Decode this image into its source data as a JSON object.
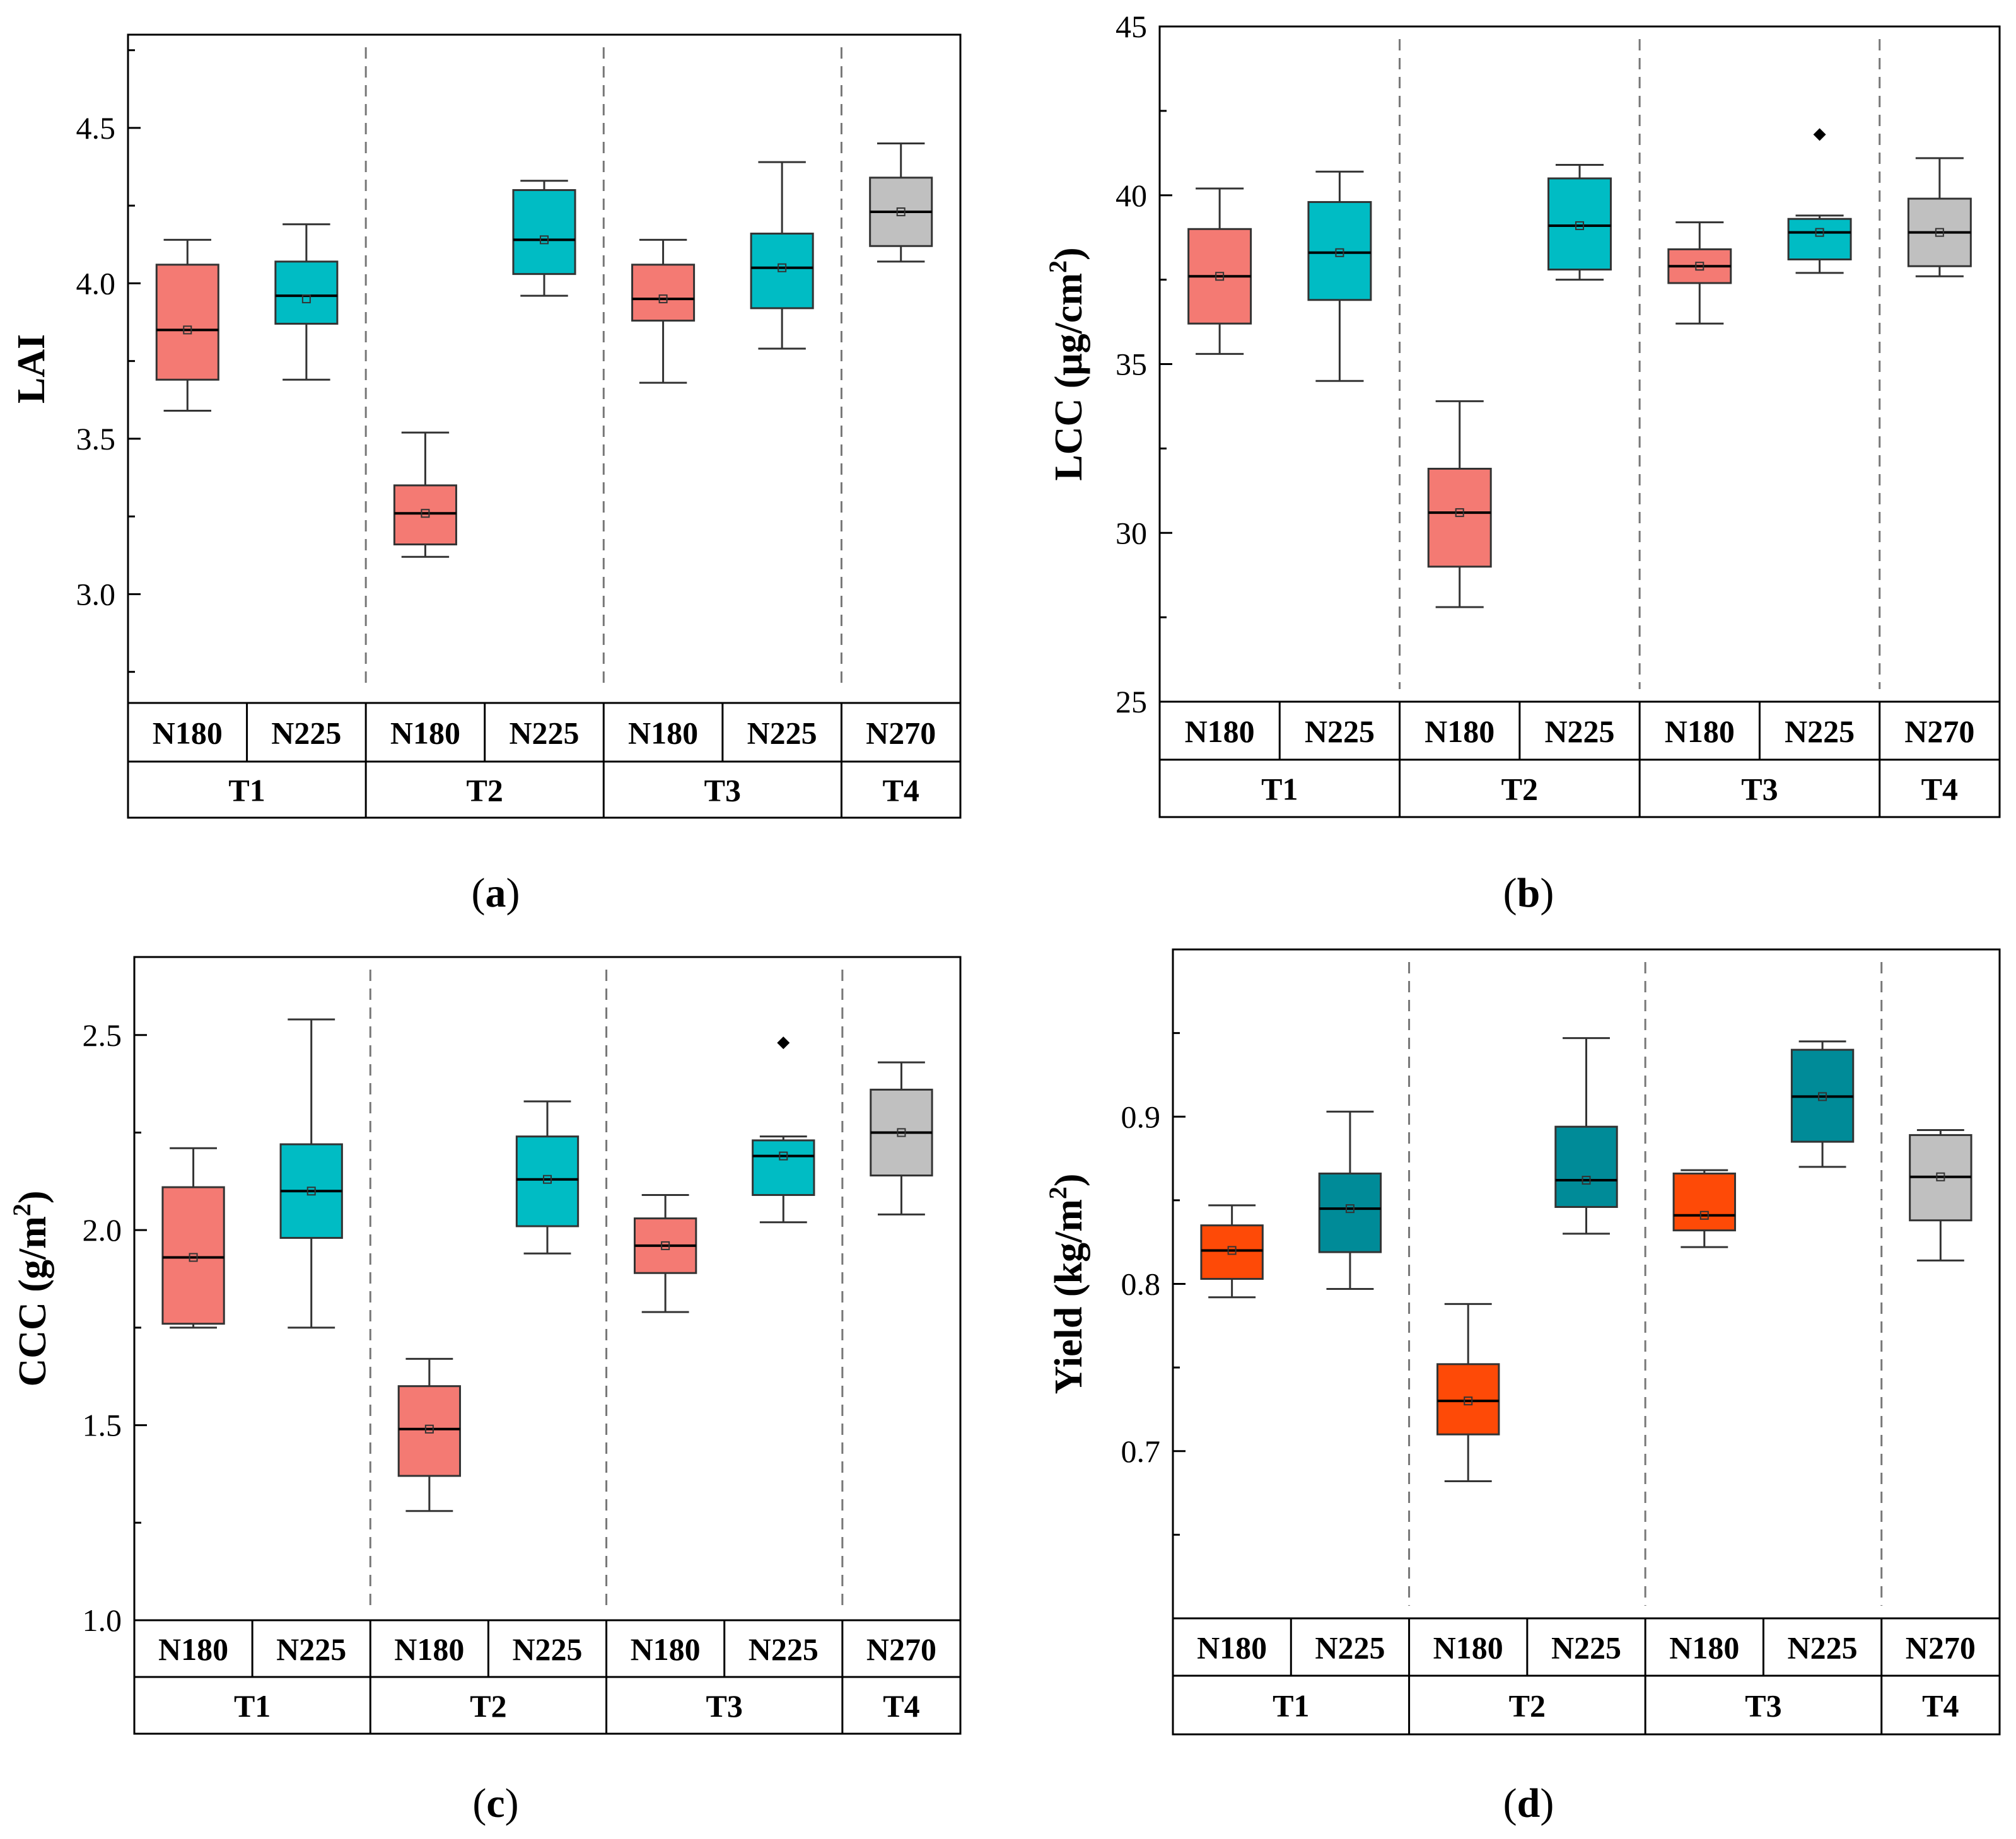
{
  "colors": {
    "N180": "#f47a73",
    "N225": "#00bcc4",
    "N270": "#c0c0c0",
    "yield_N180": "#fe4a07",
    "yield_N225": "#008b98"
  },
  "chart_data": [
    {
      "panel": "a",
      "type": "box",
      "caption": "(a)",
      "caption_letter": "a",
      "ylabel": "LAI",
      "ylabel_sup": "",
      "ylabel_close": "",
      "ylim": [
        2.65,
        4.8
      ],
      "yticks": [
        3.0,
        3.5,
        4.0,
        4.5
      ],
      "ytick_labels": [
        "3.0",
        "3.5",
        "4.0",
        "4.5"
      ],
      "groups": [
        {
          "name": "T1",
          "categories": [
            "N180",
            "N225"
          ]
        },
        {
          "name": "T2",
          "categories": [
            "N180",
            "N225"
          ]
        },
        {
          "name": "T3",
          "categories": [
            "N180",
            "N225"
          ]
        },
        {
          "name": "T4",
          "categories": [
            "N270"
          ]
        }
      ],
      "boxes": [
        {
          "group": "T1",
          "category": "N180",
          "min": 3.59,
          "q1": 3.69,
          "median": 3.85,
          "mean": 3.85,
          "q3": 4.06,
          "max": 4.14,
          "outliers": []
        },
        {
          "group": "T1",
          "category": "N225",
          "min": 3.69,
          "q1": 3.87,
          "median": 3.96,
          "mean": 3.95,
          "q3": 4.07,
          "max": 4.19,
          "outliers": []
        },
        {
          "group": "T2",
          "category": "N180",
          "min": 3.12,
          "q1": 3.16,
          "median": 3.26,
          "mean": 3.26,
          "q3": 3.35,
          "max": 3.52,
          "outliers": []
        },
        {
          "group": "T2",
          "category": "N225",
          "min": 3.96,
          "q1": 4.03,
          "median": 4.14,
          "mean": 4.14,
          "q3": 4.3,
          "max": 4.33,
          "outliers": []
        },
        {
          "group": "T3",
          "category": "N180",
          "min": 3.68,
          "q1": 3.88,
          "median": 3.95,
          "mean": 3.95,
          "q3": 4.06,
          "max": 4.14,
          "outliers": []
        },
        {
          "group": "T3",
          "category": "N225",
          "min": 3.79,
          "q1": 3.92,
          "median": 4.05,
          "mean": 4.05,
          "q3": 4.16,
          "max": 4.39,
          "outliers": []
        },
        {
          "group": "T4",
          "category": "N270",
          "min": 4.07,
          "q1": 4.12,
          "median": 4.23,
          "mean": 4.23,
          "q3": 4.34,
          "max": 4.45,
          "outliers": []
        }
      ]
    },
    {
      "panel": "b",
      "type": "box",
      "caption": "(b)",
      "caption_letter": "b",
      "ylabel": "LCC (μg/cm",
      "ylabel_sup": "2",
      "ylabel_close": ")",
      "ylim": [
        25,
        45
      ],
      "yticks": [
        25,
        30,
        35,
        40,
        45
      ],
      "ytick_labels": [
        "25",
        "30",
        "35",
        "40",
        "45"
      ],
      "groups": [
        {
          "name": "T1",
          "categories": [
            "N180",
            "N225"
          ]
        },
        {
          "name": "T2",
          "categories": [
            "N180",
            "N225"
          ]
        },
        {
          "name": "T3",
          "categories": [
            "N180",
            "N225"
          ]
        },
        {
          "name": "T4",
          "categories": [
            "N270"
          ]
        }
      ],
      "boxes": [
        {
          "group": "T1",
          "category": "N180",
          "min": 35.3,
          "q1": 36.2,
          "median": 37.6,
          "mean": 37.6,
          "q3": 39.0,
          "max": 40.2,
          "outliers": []
        },
        {
          "group": "T1",
          "category": "N225",
          "min": 34.5,
          "q1": 36.9,
          "median": 38.3,
          "mean": 38.3,
          "q3": 39.8,
          "max": 40.7,
          "outliers": []
        },
        {
          "group": "T2",
          "category": "N180",
          "min": 27.8,
          "q1": 29.0,
          "median": 30.6,
          "mean": 30.6,
          "q3": 31.9,
          "max": 33.9,
          "outliers": []
        },
        {
          "group": "T2",
          "category": "N225",
          "min": 37.5,
          "q1": 37.8,
          "median": 39.1,
          "mean": 39.1,
          "q3": 40.5,
          "max": 40.9,
          "outliers": []
        },
        {
          "group": "T3",
          "category": "N180",
          "min": 36.2,
          "q1": 37.4,
          "median": 37.9,
          "mean": 37.9,
          "q3": 38.4,
          "max": 39.2,
          "outliers": []
        },
        {
          "group": "T3",
          "category": "N225",
          "min": 37.7,
          "q1": 38.1,
          "median": 38.9,
          "mean": 38.9,
          "q3": 39.3,
          "max": 39.4,
          "outliers": [
            41.8
          ]
        },
        {
          "group": "T4",
          "category": "N270",
          "min": 37.6,
          "q1": 37.9,
          "median": 38.9,
          "mean": 38.9,
          "q3": 39.9,
          "max": 41.1,
          "outliers": []
        }
      ]
    },
    {
      "panel": "c",
      "type": "box",
      "caption": "(c)",
      "caption_letter": "c",
      "ylabel": "CCC (g/m",
      "ylabel_sup": "2",
      "ylabel_close": ")",
      "ylim": [
        1.0,
        2.7
      ],
      "yticks": [
        1.0,
        1.5,
        2.0,
        2.5
      ],
      "ytick_labels": [
        "1.0",
        "1.5",
        "2.0",
        "2.5"
      ],
      "groups": [
        {
          "name": "T1",
          "categories": [
            "N180",
            "N225"
          ]
        },
        {
          "name": "T2",
          "categories": [
            "N180",
            "N225"
          ]
        },
        {
          "name": "T3",
          "categories": [
            "N180",
            "N225"
          ]
        },
        {
          "name": "T4",
          "categories": [
            "N270"
          ]
        }
      ],
      "boxes": [
        {
          "group": "T1",
          "category": "N180",
          "min": 1.75,
          "q1": 1.76,
          "median": 1.93,
          "mean": 1.93,
          "q3": 2.11,
          "max": 2.21,
          "outliers": []
        },
        {
          "group": "T1",
          "category": "N225",
          "min": 1.75,
          "q1": 1.98,
          "median": 2.1,
          "mean": 2.1,
          "q3": 2.22,
          "max": 2.54,
          "outliers": []
        },
        {
          "group": "T2",
          "category": "N180",
          "min": 1.28,
          "q1": 1.37,
          "median": 1.49,
          "mean": 1.49,
          "q3": 1.6,
          "max": 1.67,
          "outliers": []
        },
        {
          "group": "T2",
          "category": "N225",
          "min": 1.94,
          "q1": 2.01,
          "median": 2.13,
          "mean": 2.13,
          "q3": 2.24,
          "max": 2.33,
          "outliers": []
        },
        {
          "group": "T3",
          "category": "N180",
          "min": 1.79,
          "q1": 1.89,
          "median": 1.96,
          "mean": 1.96,
          "q3": 2.03,
          "max": 2.09,
          "outliers": []
        },
        {
          "group": "T3",
          "category": "N225",
          "min": 2.02,
          "q1": 2.09,
          "median": 2.19,
          "mean": 2.19,
          "q3": 2.23,
          "max": 2.24,
          "outliers": [
            2.48
          ]
        },
        {
          "group": "T4",
          "category": "N270",
          "min": 2.04,
          "q1": 2.14,
          "median": 2.25,
          "mean": 2.25,
          "q3": 2.36,
          "max": 2.43,
          "outliers": []
        }
      ]
    },
    {
      "panel": "d",
      "type": "box",
      "caption": "(d)",
      "caption_letter": "d",
      "ylabel": "Yield (kg/m",
      "ylabel_sup": "2",
      "ylabel_close": ")",
      "ylim": [
        0.6,
        1.0
      ],
      "yticks": [
        0.7,
        0.8,
        0.9
      ],
      "ytick_labels": [
        "0.7",
        "0.8",
        "0.9"
      ],
      "groups": [
        {
          "name": "T1",
          "categories": [
            "N180",
            "N225"
          ]
        },
        {
          "name": "T2",
          "categories": [
            "N180",
            "N225"
          ]
        },
        {
          "name": "T3",
          "categories": [
            "N180",
            "N225"
          ]
        },
        {
          "name": "T4",
          "categories": [
            "N270"
          ]
        }
      ],
      "boxes": [
        {
          "group": "T1",
          "category": "N180",
          "min": 0.792,
          "q1": 0.803,
          "median": 0.82,
          "mean": 0.82,
          "q3": 0.835,
          "max": 0.847,
          "outliers": []
        },
        {
          "group": "T1",
          "category": "N225",
          "min": 0.797,
          "q1": 0.819,
          "median": 0.845,
          "mean": 0.845,
          "q3": 0.866,
          "max": 0.903,
          "outliers": []
        },
        {
          "group": "T2",
          "category": "N180",
          "min": 0.682,
          "q1": 0.71,
          "median": 0.73,
          "mean": 0.73,
          "q3": 0.752,
          "max": 0.788,
          "outliers": []
        },
        {
          "group": "T2",
          "category": "N225",
          "min": 0.83,
          "q1": 0.846,
          "median": 0.862,
          "mean": 0.862,
          "q3": 0.894,
          "max": 0.947,
          "outliers": []
        },
        {
          "group": "T3",
          "category": "N180",
          "min": 0.822,
          "q1": 0.832,
          "median": 0.841,
          "mean": 0.841,
          "q3": 0.866,
          "max": 0.868,
          "outliers": []
        },
        {
          "group": "T3",
          "category": "N225",
          "min": 0.87,
          "q1": 0.885,
          "median": 0.912,
          "mean": 0.912,
          "q3": 0.94,
          "max": 0.945,
          "outliers": []
        },
        {
          "group": "T4",
          "category": "N270",
          "min": 0.814,
          "q1": 0.838,
          "median": 0.864,
          "mean": 0.864,
          "q3": 0.889,
          "max": 0.892,
          "outliers": []
        }
      ]
    }
  ]
}
